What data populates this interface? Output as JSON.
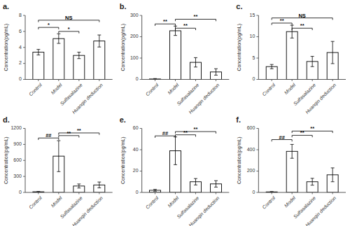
{
  "chart_data": [
    {
      "type": "bar",
      "title": "a.",
      "ylabel": "Concentration(pg/mL)",
      "categories": [
        "Control",
        "Model",
        "Sulfasalazine",
        "Huanqin deduction"
      ],
      "values": [
        3.4,
        5.1,
        3.0,
        4.8
      ],
      "errors": [
        0.35,
        0.6,
        0.4,
        0.75
      ],
      "color": "#ffffff",
      "ylim": [
        0,
        8
      ],
      "yticks": [
        0,
        2,
        4,
        6,
        8
      ],
      "annotations": [
        {
          "from": "Control",
          "to": "Model",
          "y": 6.5,
          "text": "*"
        },
        {
          "from": "Model",
          "to": "Sulfasalazine",
          "y": 6.0,
          "text": "*"
        },
        {
          "from": "Control",
          "to": "Huanqin deduction",
          "y": 7.4,
          "text": "NS"
        }
      ]
    },
    {
      "type": "bar",
      "title": "b.",
      "ylabel": "Concentration(pg/mL)",
      "categories": [
        "Control",
        "Model",
        "Sulfasalazine",
        "Huanqin deduction"
      ],
      "values": [
        2,
        228,
        80,
        35
      ],
      "errors": [
        2,
        22,
        22,
        15
      ],
      "color": "#ffffff",
      "ylim": [
        0,
        300
      ],
      "yticks": [
        0,
        100,
        200,
        300
      ],
      "annotations": [
        {
          "from": "Control",
          "to": "Model",
          "y": 260,
          "text": "**"
        },
        {
          "from": "Model",
          "to": "Sulfasalazine",
          "y": 240,
          "text": "**"
        },
        {
          "from": "Model",
          "to": "Huanqin deduction",
          "y": 282,
          "text": "**"
        }
      ]
    },
    {
      "type": "bar",
      "title": "c.",
      "ylabel": "Concentration(pg/mL)",
      "categories": [
        "Control",
        "Model",
        "Sulfasalazine",
        "Huanqin deduction"
      ],
      "values": [
        3.0,
        11.2,
        4.2,
        6.3
      ],
      "errors": [
        0.5,
        1.5,
        1.2,
        2.6
      ],
      "color": "#ffffff",
      "ylim": [
        0,
        15
      ],
      "yticks": [
        0,
        5,
        10,
        15
      ],
      "annotations": [
        {
          "from": "Control",
          "to": "Model",
          "y": 13.2,
          "text": "**"
        },
        {
          "from": "Model",
          "to": "Sulfasalazine",
          "y": 12.0,
          "text": "**"
        },
        {
          "from": "Control",
          "to": "Huanqin deduction",
          "y": 14.4,
          "text": "NS"
        }
      ]
    },
    {
      "type": "bar",
      "title": "d.",
      "ylabel": "Concentration(pg/mL)",
      "categories": [
        "Control",
        "Model",
        "Sulfasalazine",
        "Huanqin deduction"
      ],
      "values": [
        12,
        680,
        120,
        140
      ],
      "errors": [
        5,
        290,
        38,
        55
      ],
      "color": "#ffffff",
      "ylim": [
        0,
        1200
      ],
      "yticks": [
        0,
        300,
        600,
        900,
        1200
      ],
      "annotations": [
        {
          "from": "Control",
          "to": "Model",
          "y": 1020,
          "text": "##"
        },
        {
          "from": "Model",
          "to": "Sulfasalazine",
          "y": 1065,
          "text": "**"
        },
        {
          "from": "Model",
          "to": "Huanqin deduction",
          "y": 1115,
          "text": "**"
        }
      ]
    },
    {
      "type": "bar",
      "title": "e.",
      "ylabel": "Concentration(pg/mL)",
      "categories": [
        "Control",
        "Model",
        "Sulfasalazine",
        "Huanqin deduction"
      ],
      "values": [
        2,
        39,
        10,
        8
      ],
      "errors": [
        0.8,
        13,
        3,
        3
      ],
      "color": "#ffffff",
      "ylim": [
        0,
        60
      ],
      "yticks": [
        0,
        20,
        40,
        60
      ],
      "annotations": [
        {
          "from": "Control",
          "to": "Model",
          "y": 53,
          "text": "##"
        },
        {
          "from": "Model",
          "to": "Sulfasalazine",
          "y": 54,
          "text": "**"
        },
        {
          "from": "Model",
          "to": "Huanqin deduction",
          "y": 57,
          "text": "**"
        }
      ]
    },
    {
      "type": "bar",
      "title": "f.",
      "ylabel": "Concentration(pg/mL)",
      "categories": [
        "Control",
        "Model",
        "Sulfasalazine",
        "Huanqin deduction"
      ],
      "values": [
        5,
        385,
        100,
        165
      ],
      "errors": [
        3,
        65,
        32,
        65
      ],
      "color": "#ffffff",
      "ylim": [
        0,
        600
      ],
      "yticks": [
        0,
        200,
        400,
        600
      ],
      "annotations": [
        {
          "from": "Control",
          "to": "Model",
          "y": 495,
          "text": "##"
        },
        {
          "from": "Model",
          "to": "Sulfasalazine",
          "y": 535,
          "text": "**"
        },
        {
          "from": "Model",
          "to": "Huanqin deduction",
          "y": 575,
          "text": "**"
        }
      ]
    }
  ]
}
